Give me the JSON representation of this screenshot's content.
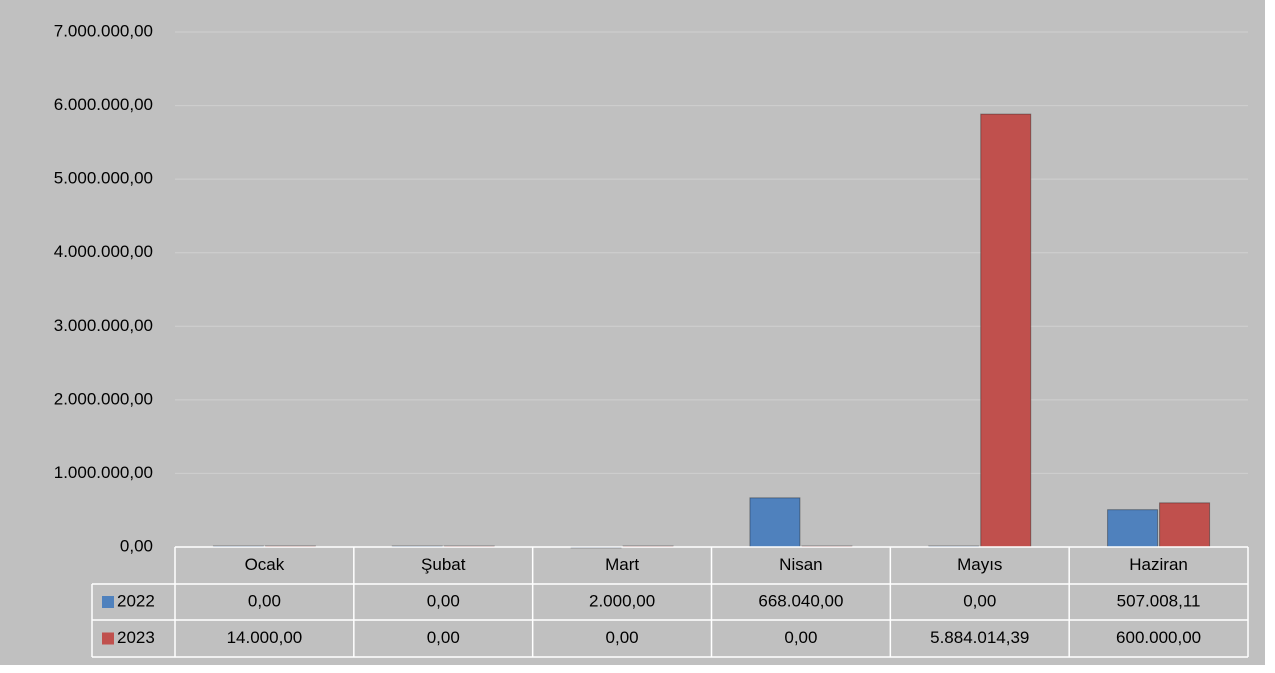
{
  "chart_data": {
    "type": "bar",
    "categories": [
      "Ocak",
      "Şubat",
      "Mart",
      "Nisan",
      "Mayıs",
      "Haziran"
    ],
    "series": [
      {
        "name": "2022",
        "color": "#4f81bd",
        "values": [
          0,
          0,
          2000,
          668040,
          0,
          507008.11
        ],
        "value_labels": [
          "0,00",
          "0,00",
          "2.000,00",
          "668.040,00",
          "0,00",
          "507.008,11"
        ]
      },
      {
        "name": "2023",
        "color": "#c0504d",
        "values": [
          14000,
          0,
          0,
          0,
          5884014.39,
          600000
        ],
        "value_labels": [
          "14.000,00",
          "0,00",
          "0,00",
          "0,00",
          "5.884.014,39",
          "600.000,00"
        ]
      }
    ],
    "ylim": [
      0,
      7000000
    ],
    "yticks": [
      {
        "value": 0,
        "label": "0,00"
      },
      {
        "value": 1000000,
        "label": "1.000.000,00"
      },
      {
        "value": 2000000,
        "label": "2.000.000,00"
      },
      {
        "value": 3000000,
        "label": "3.000.000,00"
      },
      {
        "value": 4000000,
        "label": "4.000.000,00"
      },
      {
        "value": 5000000,
        "label": "5.000.000,00"
      },
      {
        "value": 6000000,
        "label": "6.000.000,00"
      },
      {
        "value": 7000000,
        "label": "7.000.000,00"
      }
    ],
    "grid": true
  }
}
